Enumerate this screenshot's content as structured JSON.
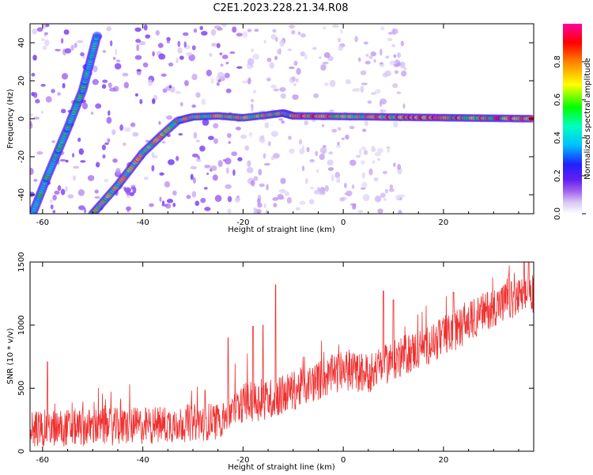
{
  "title": "C2E1.2023.228.21.34.R08",
  "chart_data": [
    {
      "type": "heatmap",
      "xlabel": "Height of straight line (km)",
      "ylabel": "Frequency (Hz)",
      "xlim": [
        -62.5,
        38
      ],
      "ylim": [
        -50,
        50
      ],
      "xticks": [
        -60,
        -40,
        -20,
        0,
        20
      ],
      "yticks": [
        -40,
        -20,
        0,
        20,
        40
      ],
      "colorbar": {
        "label": "Normalized spectral amplitude",
        "range": [
          0.0,
          1.0
        ],
        "ticks": [
          0.0,
          0.2,
          0.4,
          0.6,
          0.8
        ],
        "colormap": [
          "#ffffff",
          "#d8c8f4",
          "#a060f0",
          "#6020f0",
          "#2020ff",
          "#00c0ff",
          "#00ffc0",
          "#00ff00",
          "#ffff00",
          "#ff8000",
          "#ff0000",
          "#ff00a0"
        ]
      },
      "ridges": [
        {
          "points": [
            [
              -62,
              -50
            ],
            [
              -59,
              -30
            ],
            [
              -55,
              -5
            ],
            [
              -52,
              15
            ],
            [
              -49,
              45
            ]
          ],
          "peak": 0.55
        },
        {
          "points": [
            [
              -50,
              -50
            ],
            [
              -45,
              -35
            ],
            [
              -40,
              -18
            ],
            [
              -36,
              -8
            ],
            [
              -33,
              -1
            ],
            [
              -30,
              1
            ],
            [
              -25,
              1.5
            ],
            [
              -20,
              0.5
            ],
            [
              -15,
              2
            ],
            [
              -12,
              3
            ],
            [
              -10,
              1.5
            ],
            [
              38,
              0
            ]
          ],
          "peak": 0.75
        }
      ]
    },
    {
      "type": "line",
      "xlabel": "Height of straight line (km)",
      "ylabel": "SNR (10 * v/v)",
      "xlim": [
        -62.5,
        38
      ],
      "ylim": [
        0,
        1500
      ],
      "xticks": [
        -60,
        -40,
        -20,
        0,
        20
      ],
      "yticks": [
        0,
        500,
        1000,
        1500
      ],
      "color": "#f03030",
      "baseline": [
        [
          -62.5,
          180
        ],
        [
          -40,
          200
        ],
        [
          -25,
          240
        ],
        [
          -20,
          380
        ],
        [
          -14,
          420
        ],
        [
          -10,
          480
        ],
        [
          0,
          640
        ],
        [
          5,
          620
        ],
        [
          10,
          720
        ],
        [
          20,
          900
        ],
        [
          30,
          1150
        ],
        [
          38,
          1250
        ]
      ],
      "spikes": [
        [
          -59,
          710
        ],
        [
          -23,
          900
        ],
        [
          -18,
          990
        ],
        [
          -16,
          1000
        ],
        [
          -13.5,
          1320
        ],
        [
          8,
          1270
        ],
        [
          10,
          1200
        ],
        [
          22,
          1260
        ],
        [
          33,
          1400
        ],
        [
          37,
          1510
        ]
      ]
    }
  ]
}
